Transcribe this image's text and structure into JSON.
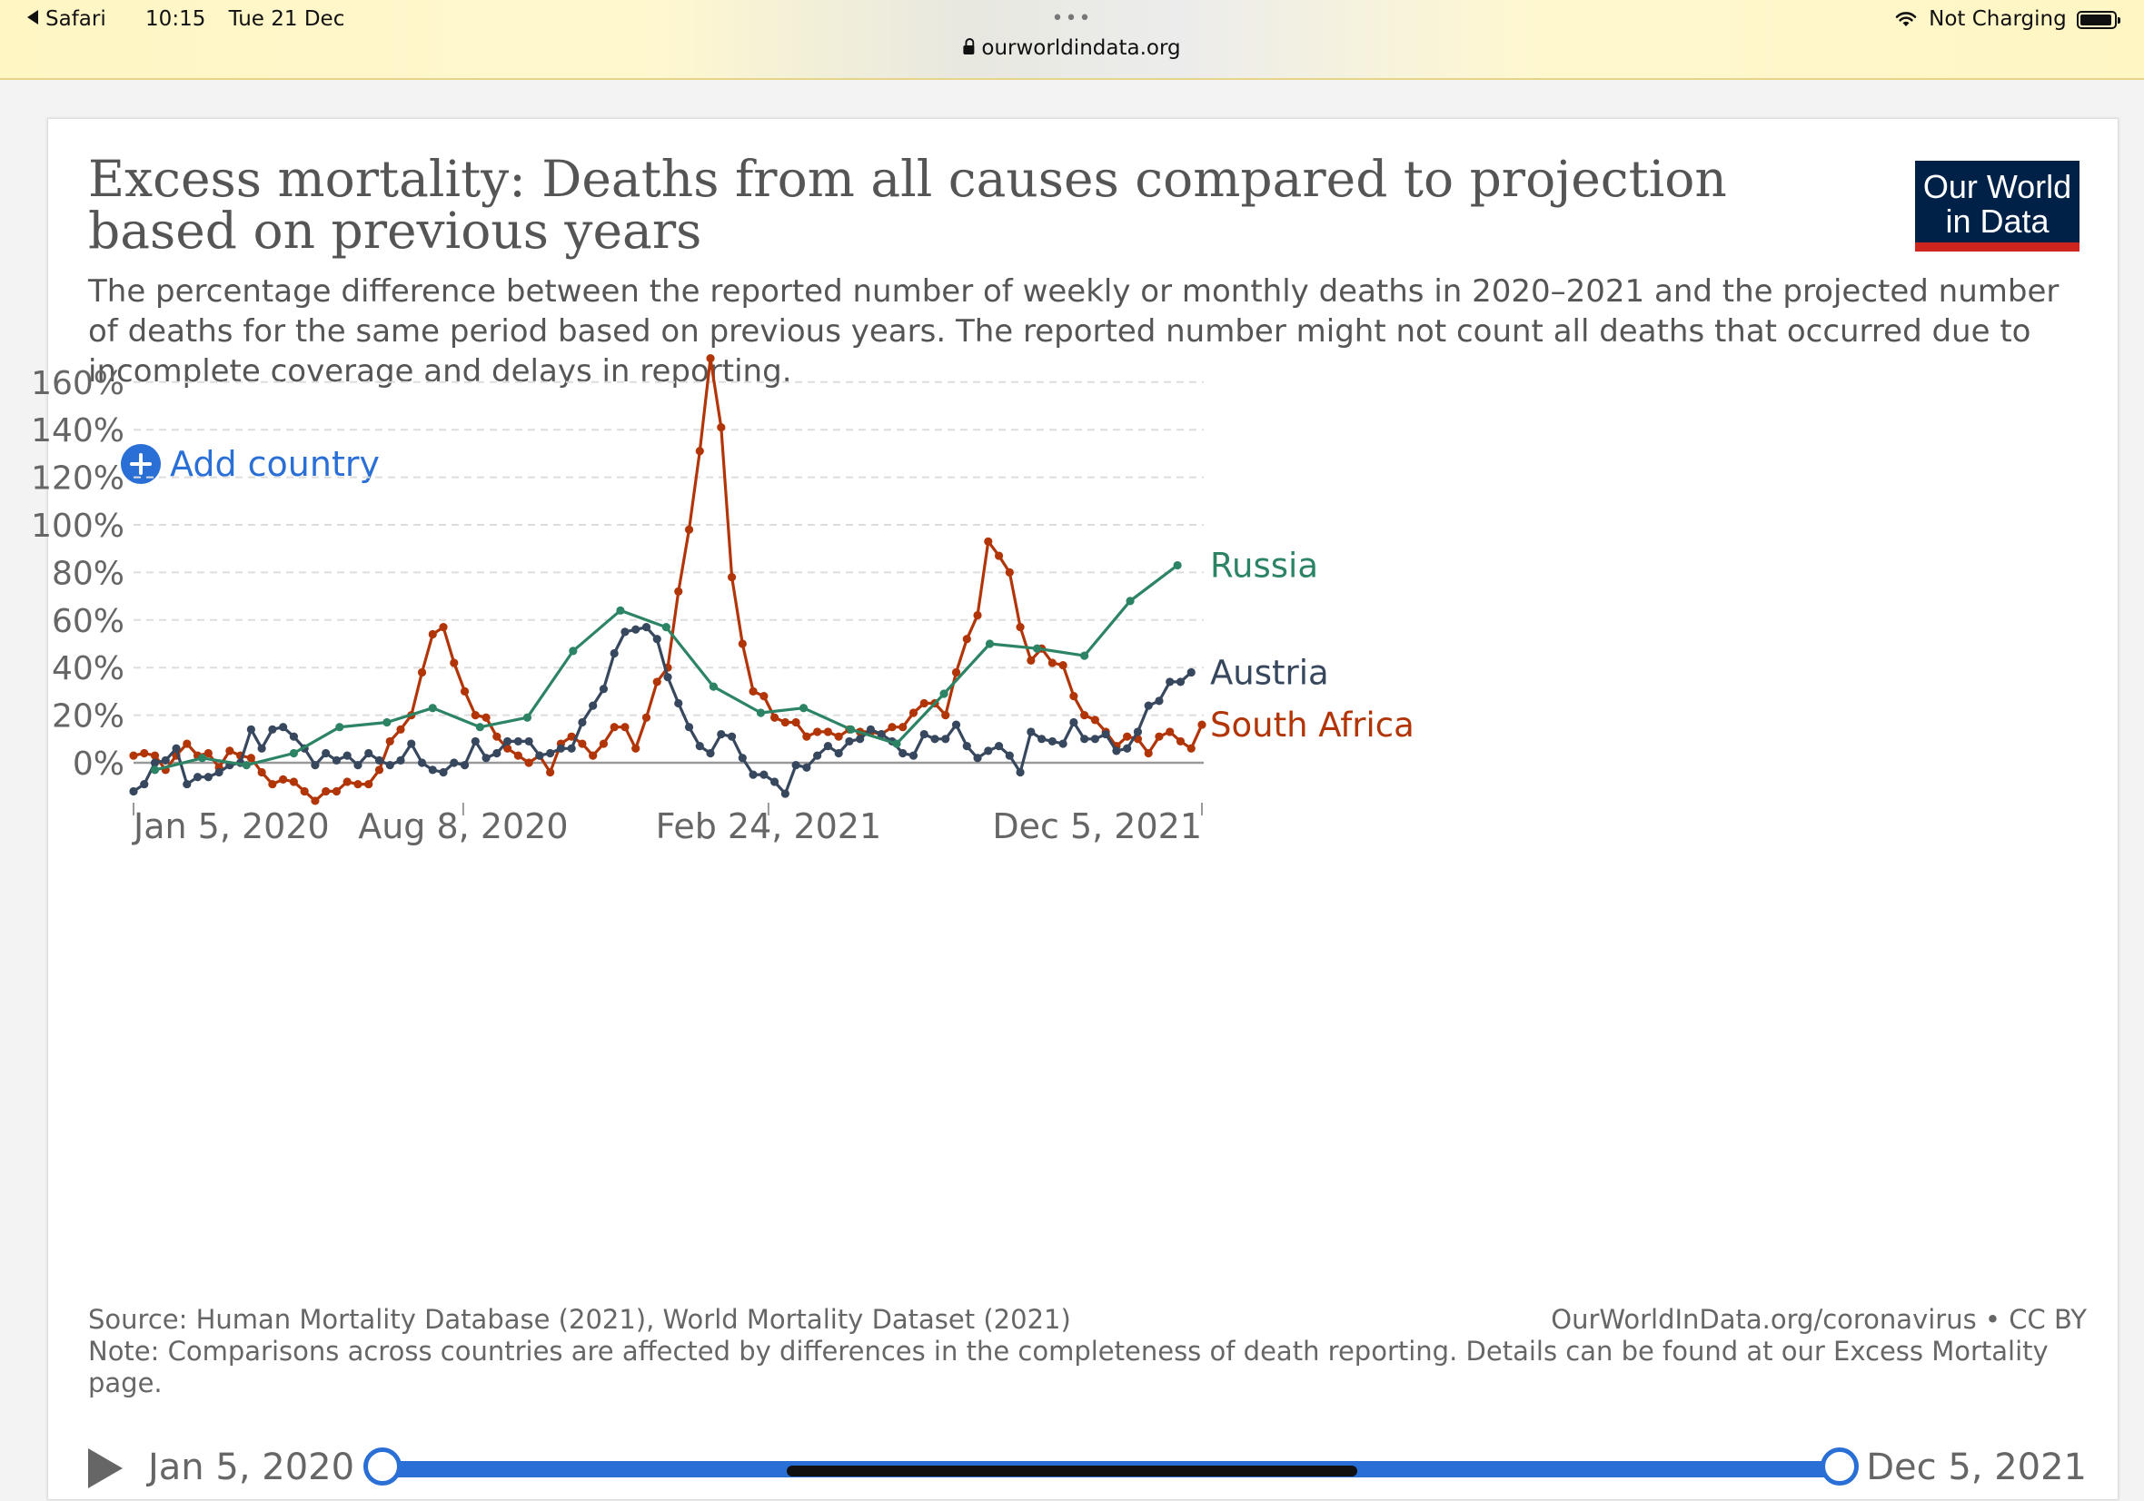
{
  "status_bar": {
    "app": "Safari",
    "time": "10:15",
    "date": "Tue 21 Dec",
    "url": "ourworldindata.org",
    "battery_status": "Not Charging",
    "battery_level": 0.95
  },
  "card": {
    "title": "Excess mortality: Deaths from all causes compared to projection based on previous years",
    "subtitle": "The percentage difference between the reported number of weekly or monthly deaths in 2020–2021 and the projected number of deaths for the same period based on previous years. The reported number might not count all deaths that occurred due to incomplete coverage and delays in reporting.",
    "logo": {
      "line1": "Our World",
      "line2": "in Data",
      "bg_color": "#002147",
      "accent_color": "#ce261e"
    },
    "add_country_label": "Add country",
    "source": "Source: Human Mortality Database (2021), World Mortality Dataset (2021)",
    "attribution": "OurWorldInData.org/coronavirus • CC BY",
    "note": "Note: Comparisons across countries are affected by differences in the completeness of death reporting. Details can be found at our Excess Mortality page.",
    "timeline": {
      "start_label": "Jan 5, 2020",
      "end_label": "Dec 5, 2021",
      "range": [
        0,
        1
      ]
    }
  },
  "chart_data": {
    "type": "line",
    "xlabel": "",
    "ylabel": "",
    "y_unit": "%",
    "ylim": [
      -15,
      175
    ],
    "yticks": [
      0,
      20,
      40,
      60,
      80,
      100,
      120,
      140,
      160
    ],
    "xlim": [
      "2020-01-05",
      "2021-12-05"
    ],
    "xticks": [
      {
        "date": "2020-01-05",
        "label": "Jan 5, 2020"
      },
      {
        "date": "2020-08-08",
        "label": "Aug 8, 2020"
      },
      {
        "date": "2021-02-24",
        "label": "Feb 24, 2021"
      },
      {
        "date": "2021-12-05",
        "label": "Dec 5, 2021"
      }
    ],
    "grid": true,
    "legend": "right",
    "series": [
      {
        "name": "South Africa",
        "color": "#b13507",
        "points": [
          [
            "2020-01-05",
            3
          ],
          [
            "2020-01-12",
            4
          ],
          [
            "2020-01-19",
            3
          ],
          [
            "2020-01-26",
            -3
          ],
          [
            "2020-02-02",
            3
          ],
          [
            "2020-02-09",
            8
          ],
          [
            "2020-02-16",
            3
          ],
          [
            "2020-02-23",
            4
          ],
          [
            "2020-03-01",
            -2
          ],
          [
            "2020-03-08",
            5
          ],
          [
            "2020-03-15",
            3
          ],
          [
            "2020-03-22",
            2
          ],
          [
            "2020-03-29",
            -4
          ],
          [
            "2020-04-05",
            -9
          ],
          [
            "2020-04-12",
            -7
          ],
          [
            "2020-04-19",
            -8
          ],
          [
            "2020-04-26",
            -12
          ],
          [
            "2020-05-03",
            -16
          ],
          [
            "2020-05-10",
            -12
          ],
          [
            "2020-05-17",
            -12
          ],
          [
            "2020-05-24",
            -8
          ],
          [
            "2020-05-31",
            -9
          ],
          [
            "2020-06-07",
            -9
          ],
          [
            "2020-06-14",
            -3
          ],
          [
            "2020-06-21",
            9
          ],
          [
            "2020-06-28",
            14
          ],
          [
            "2020-07-05",
            20
          ],
          [
            "2020-07-12",
            38
          ],
          [
            "2020-07-19",
            54
          ],
          [
            "2020-07-26",
            57
          ],
          [
            "2020-08-02",
            42
          ],
          [
            "2020-08-09",
            30
          ],
          [
            "2020-08-16",
            20
          ],
          [
            "2020-08-23",
            19
          ],
          [
            "2020-08-30",
            11
          ],
          [
            "2020-09-06",
            6
          ],
          [
            "2020-09-13",
            3
          ],
          [
            "2020-09-20",
            0
          ],
          [
            "2020-09-27",
            3
          ],
          [
            "2020-10-04",
            -4
          ],
          [
            "2020-10-11",
            8
          ],
          [
            "2020-10-18",
            11
          ],
          [
            "2020-10-25",
            8
          ],
          [
            "2020-11-01",
            3
          ],
          [
            "2020-11-08",
            8
          ],
          [
            "2020-11-15",
            15
          ],
          [
            "2020-11-22",
            15
          ],
          [
            "2020-11-29",
            6
          ],
          [
            "2020-12-06",
            19
          ],
          [
            "2020-12-13",
            34
          ],
          [
            "2020-12-20",
            40
          ],
          [
            "2020-12-27",
            72
          ],
          [
            "2021-01-03",
            98
          ],
          [
            "2021-01-10",
            131
          ],
          [
            "2021-01-17",
            170
          ],
          [
            "2021-01-24",
            141
          ],
          [
            "2021-01-31",
            78
          ],
          [
            "2021-02-07",
            50
          ],
          [
            "2021-02-14",
            30
          ],
          [
            "2021-02-21",
            28
          ],
          [
            "2021-02-28",
            19
          ],
          [
            "2021-03-07",
            17
          ],
          [
            "2021-03-14",
            17
          ],
          [
            "2021-03-21",
            11
          ],
          [
            "2021-03-28",
            13
          ],
          [
            "2021-04-04",
            13
          ],
          [
            "2021-04-11",
            11
          ],
          [
            "2021-04-18",
            14
          ],
          [
            "2021-04-25",
            13
          ],
          [
            "2021-05-02",
            13
          ],
          [
            "2021-05-09",
            12
          ],
          [
            "2021-05-16",
            15
          ],
          [
            "2021-05-23",
            15
          ],
          [
            "2021-05-30",
            21
          ],
          [
            "2021-06-06",
            25
          ],
          [
            "2021-06-13",
            25
          ],
          [
            "2021-06-20",
            20
          ],
          [
            "2021-06-27",
            38
          ],
          [
            "2021-07-04",
            52
          ],
          [
            "2021-07-11",
            62
          ],
          [
            "2021-07-18",
            93
          ],
          [
            "2021-07-25",
            87
          ],
          [
            "2021-08-01",
            80
          ],
          [
            "2021-08-08",
            57
          ],
          [
            "2021-08-15",
            43
          ],
          [
            "2021-08-22",
            48
          ],
          [
            "2021-08-29",
            42
          ],
          [
            "2021-09-05",
            41
          ],
          [
            "2021-09-12",
            28
          ],
          [
            "2021-09-19",
            20
          ],
          [
            "2021-09-26",
            18
          ],
          [
            "2021-10-03",
            13
          ],
          [
            "2021-10-10",
            7
          ],
          [
            "2021-10-17",
            11
          ],
          [
            "2021-10-24",
            10
          ],
          [
            "2021-10-31",
            4
          ],
          [
            "2021-11-07",
            11
          ],
          [
            "2021-11-14",
            13
          ],
          [
            "2021-11-21",
            9
          ],
          [
            "2021-11-28",
            6
          ],
          [
            "2021-12-05",
            16
          ]
        ]
      },
      {
        "name": "Austria",
        "color": "#37475d",
        "points": [
          [
            "2020-01-05",
            -12
          ],
          [
            "2020-01-12",
            -9
          ],
          [
            "2020-01-19",
            0
          ],
          [
            "2020-01-26",
            1
          ],
          [
            "2020-02-02",
            6
          ],
          [
            "2020-02-09",
            -9
          ],
          [
            "2020-02-16",
            -6
          ],
          [
            "2020-02-23",
            -6
          ],
          [
            "2020-03-01",
            -4
          ],
          [
            "2020-03-08",
            -1
          ],
          [
            "2020-03-15",
            0
          ],
          [
            "2020-03-22",
            14
          ],
          [
            "2020-03-29",
            6
          ],
          [
            "2020-04-05",
            14
          ],
          [
            "2020-04-12",
            15
          ],
          [
            "2020-04-19",
            11
          ],
          [
            "2020-04-26",
            6
          ],
          [
            "2020-05-03",
            -1
          ],
          [
            "2020-05-10",
            4
          ],
          [
            "2020-05-17",
            1
          ],
          [
            "2020-05-24",
            3
          ],
          [
            "2020-05-31",
            -1
          ],
          [
            "2020-06-07",
            4
          ],
          [
            "2020-06-14",
            1
          ],
          [
            "2020-06-21",
            -1
          ],
          [
            "2020-06-28",
            1
          ],
          [
            "2020-07-05",
            8
          ],
          [
            "2020-07-12",
            0
          ],
          [
            "2020-07-19",
            -3
          ],
          [
            "2020-07-26",
            -4
          ],
          [
            "2020-08-02",
            0
          ],
          [
            "2020-08-09",
            -1
          ],
          [
            "2020-08-16",
            9
          ],
          [
            "2020-08-23",
            2
          ],
          [
            "2020-08-30",
            4
          ],
          [
            "2020-09-06",
            9
          ],
          [
            "2020-09-13",
            9
          ],
          [
            "2020-09-20",
            9
          ],
          [
            "2020-09-27",
            3
          ],
          [
            "2020-10-04",
            4
          ],
          [
            "2020-10-11",
            6
          ],
          [
            "2020-10-18",
            6
          ],
          [
            "2020-10-25",
            17
          ],
          [
            "2020-11-01",
            24
          ],
          [
            "2020-11-08",
            31
          ],
          [
            "2020-11-15",
            46
          ],
          [
            "2020-11-22",
            55
          ],
          [
            "2020-11-29",
            56
          ],
          [
            "2020-12-06",
            57
          ],
          [
            "2020-12-13",
            52
          ],
          [
            "2020-12-20",
            36
          ],
          [
            "2020-12-27",
            25
          ],
          [
            "2021-01-03",
            15
          ],
          [
            "2021-01-10",
            7
          ],
          [
            "2021-01-17",
            4
          ],
          [
            "2021-01-24",
            12
          ],
          [
            "2021-01-31",
            11
          ],
          [
            "2021-02-07",
            2
          ],
          [
            "2021-02-14",
            -5
          ],
          [
            "2021-02-21",
            -5
          ],
          [
            "2021-02-28",
            -8
          ],
          [
            "2021-03-07",
            -13
          ],
          [
            "2021-03-14",
            -1
          ],
          [
            "2021-03-21",
            -2
          ],
          [
            "2021-03-28",
            3
          ],
          [
            "2021-04-04",
            7
          ],
          [
            "2021-04-11",
            4
          ],
          [
            "2021-04-18",
            9
          ],
          [
            "2021-04-25",
            10
          ],
          [
            "2021-05-02",
            14
          ],
          [
            "2021-05-09",
            12
          ],
          [
            "2021-05-16",
            9
          ],
          [
            "2021-05-23",
            4
          ],
          [
            "2021-05-30",
            3
          ],
          [
            "2021-06-06",
            12
          ],
          [
            "2021-06-13",
            10
          ],
          [
            "2021-06-20",
            10
          ],
          [
            "2021-06-27",
            16
          ],
          [
            "2021-07-04",
            7
          ],
          [
            "2021-07-11",
            2
          ],
          [
            "2021-07-18",
            5
          ],
          [
            "2021-07-25",
            7
          ],
          [
            "2021-08-01",
            3
          ],
          [
            "2021-08-08",
            -4
          ],
          [
            "2021-08-15",
            13
          ],
          [
            "2021-08-22",
            10
          ],
          [
            "2021-08-29",
            9
          ],
          [
            "2021-09-05",
            8
          ],
          [
            "2021-09-12",
            17
          ],
          [
            "2021-09-19",
            10
          ],
          [
            "2021-09-26",
            10
          ],
          [
            "2021-10-03",
            12
          ],
          [
            "2021-10-10",
            5
          ],
          [
            "2021-10-17",
            6
          ],
          [
            "2021-10-24",
            13
          ],
          [
            "2021-10-31",
            24
          ],
          [
            "2021-11-07",
            26
          ],
          [
            "2021-11-14",
            34
          ],
          [
            "2021-11-21",
            34
          ],
          [
            "2021-11-28",
            38
          ]
        ]
      },
      {
        "name": "Russia",
        "color": "#2c8465",
        "points": [
          [
            "2020-01-19",
            -3
          ],
          [
            "2020-02-19",
            2
          ],
          [
            "2020-03-19",
            -1
          ],
          [
            "2020-04-19",
            4
          ],
          [
            "2020-05-19",
            15
          ],
          [
            "2020-06-19",
            17
          ],
          [
            "2020-07-19",
            23
          ],
          [
            "2020-08-19",
            15
          ],
          [
            "2020-09-19",
            19
          ],
          [
            "2020-10-19",
            47
          ],
          [
            "2020-11-19",
            64
          ],
          [
            "2020-12-19",
            57
          ],
          [
            "2021-01-19",
            32
          ],
          [
            "2021-02-19",
            21
          ],
          [
            "2021-03-19",
            23
          ],
          [
            "2021-04-19",
            14
          ],
          [
            "2021-05-19",
            8
          ],
          [
            "2021-06-19",
            29
          ],
          [
            "2021-07-19",
            50
          ],
          [
            "2021-08-19",
            48
          ],
          [
            "2021-09-19",
            45
          ],
          [
            "2021-10-19",
            68
          ],
          [
            "2021-11-19",
            83
          ]
        ]
      }
    ]
  }
}
